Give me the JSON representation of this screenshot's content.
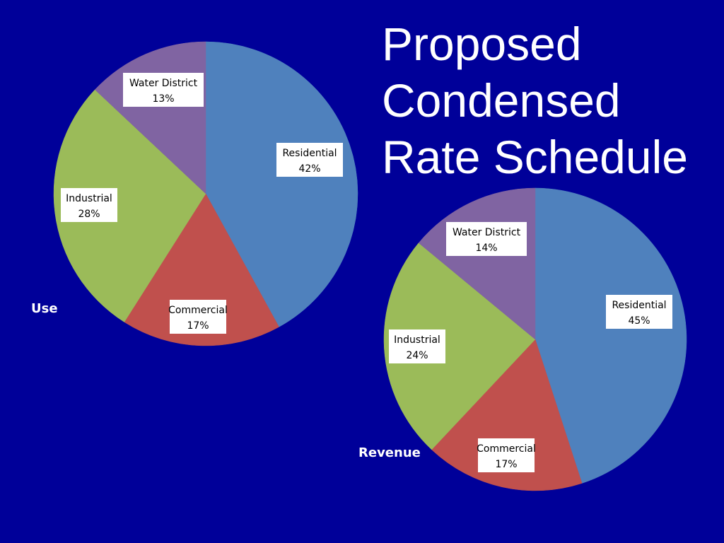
{
  "slide": {
    "title_lines": [
      "Proposed",
      "Condensed",
      "Rate Schedule"
    ],
    "background": "#000099"
  },
  "chart_data": [
    {
      "type": "pie",
      "caption": "Use",
      "categories": [
        "Residential",
        "Commercial",
        "Industrial",
        "Water District"
      ],
      "values": [
        42,
        17,
        28,
        13
      ],
      "value_labels": [
        "42%",
        "17%",
        "28%",
        "13%"
      ],
      "colors": [
        "#4F81BD",
        "#C0504D",
        "#9BBB59",
        "#8064A2"
      ],
      "start": "12 o'clock",
      "direction": "clockwise",
      "legend": "none"
    },
    {
      "type": "pie",
      "caption": "Revenue",
      "categories": [
        "Residential",
        "Commercial",
        "Industrial",
        "Water District"
      ],
      "values": [
        45,
        17,
        24,
        14
      ],
      "value_labels": [
        "45%",
        "17%",
        "24%",
        "14%"
      ],
      "colors": [
        "#4F81BD",
        "#C0504D",
        "#9BBB59",
        "#8064A2"
      ],
      "start": "12 o'clock",
      "direction": "clockwise",
      "legend": "none"
    }
  ]
}
